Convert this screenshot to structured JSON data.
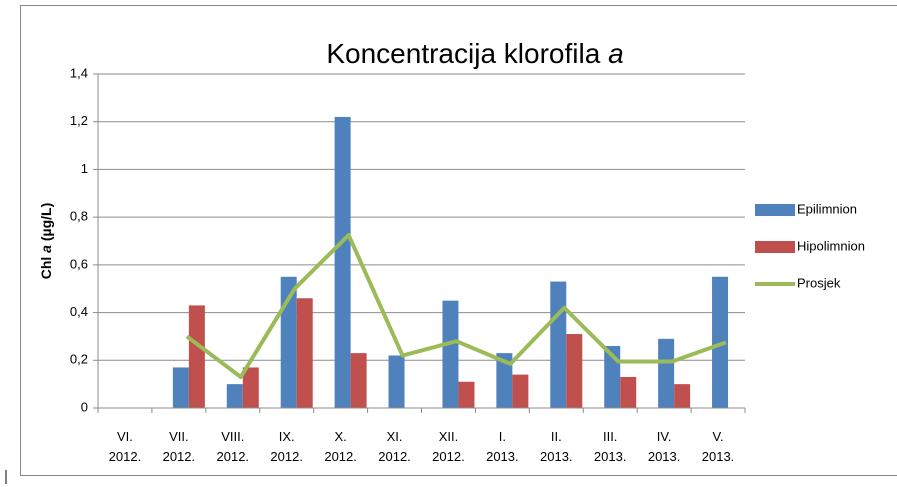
{
  "chart_data": {
    "type": "bar_line",
    "title": "Koncentracija klorofila",
    "title_italic": "a",
    "ylabel": [
      "Chl",
      "a",
      "(µg/L)"
    ],
    "categories": [
      "VI. 2012.",
      "VII. 2012.",
      "VIII. 2012.",
      "IX. 2012.",
      "X. 2012.",
      "XI. 2012.",
      "XII. 2012.",
      "I. 2013.",
      "II. 2013.",
      "III. 2013.",
      "IV. 2013.",
      "V. 2013."
    ],
    "series": [
      {
        "name": "Epilimnion",
        "color": "#4f81bd",
        "kind": "bar",
        "values": [
          null,
          0.17,
          0.1,
          0.55,
          1.22,
          0.22,
          0.45,
          0.23,
          0.53,
          0.26,
          0.29,
          0.55
        ]
      },
      {
        "name": "Hipolimnion",
        "color": "#c0504d",
        "kind": "bar",
        "values": [
          null,
          0.43,
          0.17,
          0.46,
          0.23,
          null,
          0.11,
          0.14,
          0.31,
          0.13,
          0.1,
          null
        ]
      },
      {
        "name": "Prosjek",
        "color": "#9bbb59",
        "kind": "line",
        "values": [
          null,
          0.3,
          0.13,
          0.5,
          0.725,
          0.22,
          0.28,
          0.185,
          0.42,
          0.195,
          0.195,
          0.275
        ]
      }
    ],
    "ylim": [
      0,
      1.4
    ],
    "yticks": [
      0,
      {
        "value": 0.2,
        "label": "0,2"
      },
      {
        "value": 0.4,
        "label": "0,4"
      },
      {
        "value": 0.6,
        "label": "0,6"
      },
      {
        "value": 0.8,
        "label": "0,8"
      },
      1,
      {
        "value": 1.2,
        "label": "1,2"
      },
      {
        "value": 1.4,
        "label": "1,4"
      }
    ],
    "grid": true,
    "legend": "right"
  }
}
